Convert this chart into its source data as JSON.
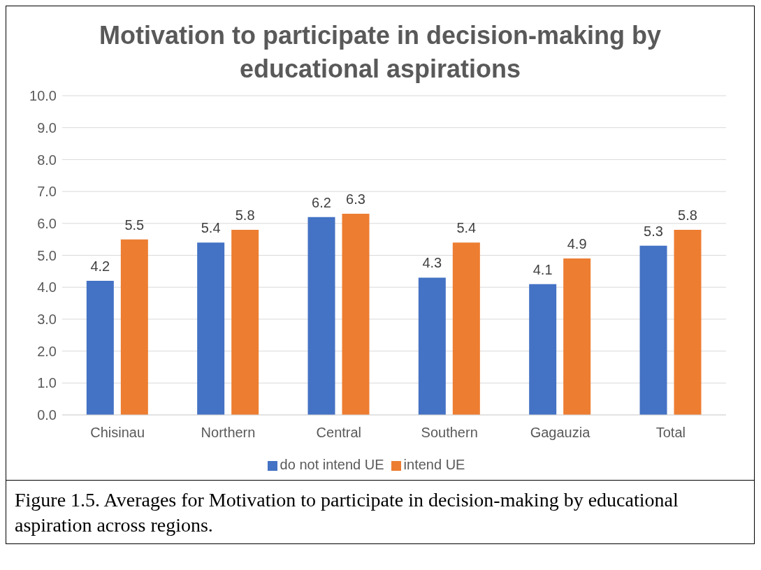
{
  "chart_data": {
    "type": "bar",
    "title": "Motivation to participate in decision-making by educational aspirations",
    "categories": [
      "Chisinau",
      "Northern",
      "Central",
      "Southern",
      "Gagauzia",
      "Total"
    ],
    "series": [
      {
        "name": "do not intend UE",
        "color": "#4472c4",
        "values": [
          4.2,
          5.4,
          6.2,
          4.3,
          4.1,
          5.3
        ]
      },
      {
        "name": "intend UE",
        "color": "#ed7d31",
        "values": [
          5.5,
          5.8,
          6.3,
          5.4,
          4.9,
          5.8
        ]
      }
    ],
    "ylim": [
      0,
      10
    ],
    "yticks": [
      {
        "value": 0,
        "label": "0.0"
      },
      {
        "value": 1,
        "label": "1.0"
      },
      {
        "value": 2,
        "label": "2.0"
      },
      {
        "value": 3,
        "label": "3.0"
      },
      {
        "value": 4,
        "label": "4.0"
      },
      {
        "value": 5,
        "label": "5.0"
      },
      {
        "value": 6,
        "label": "6.0"
      },
      {
        "value": 7,
        "label": "7.0"
      },
      {
        "value": 8,
        "label": "8.0"
      },
      {
        "value": 9,
        "label": "9.0"
      },
      {
        "value": 10,
        "label": "10.0"
      }
    ],
    "grid": "y",
    "legend": "bottom",
    "data_labels": true,
    "annotations": [
      "Figure 1.5. Averages for Motivation to participate in decision-making by educational aspiration across regions."
    ]
  }
}
